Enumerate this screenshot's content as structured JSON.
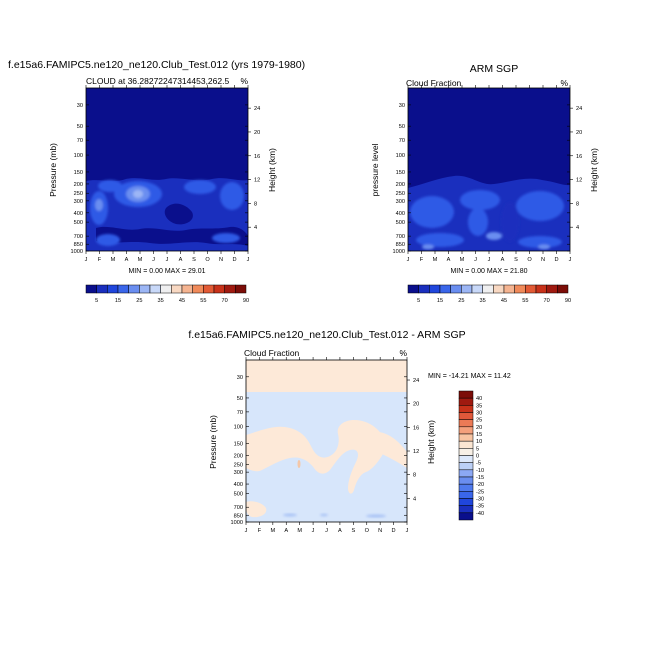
{
  "figure": {
    "panels": [
      {
        "id": "model",
        "title": "f.e15a6.FAMIPC5.ne120_ne120.Club_Test.012 (yrs 1979-1980)",
        "left_label": "CLOUD at 36.28272247314453,262.5",
        "right_label": "%",
        "ylabel": "Pressure (mb)",
        "ylabel_right": "Height (km)",
        "min_max": "MIN =   0.00 MAX =  29.01"
      },
      {
        "id": "obs",
        "title": "ARM SGP",
        "left_label": "Cloud Fraction",
        "right_label": "%",
        "ylabel": "pressure level",
        "ylabel_right": "Height (km)",
        "min_max": "MIN =   0.00 MAX =  21.80"
      },
      {
        "id": "diff",
        "title": "f.e15a6.FAMIPC5.ne120_ne120.Club_Test.012 - ARM SGP",
        "left_label": "Cloud Fraction",
        "right_label": "%",
        "ylabel": "Pressure (mb)",
        "ylabel_right": "Height (km)",
        "min_max": "MIN = -14.21 MAX =  11.42"
      }
    ]
  },
  "chart_data": [
    {
      "type": "heatmap",
      "panel": "model",
      "x_tick_labels": [
        "J",
        "F",
        "M",
        "A",
        "M",
        "J",
        "J",
        "A",
        "S",
        "O",
        "N",
        "D",
        "J"
      ],
      "pressure_ticks": [
        30,
        50,
        70,
        100,
        150,
        200,
        250,
        300,
        400,
        500,
        700,
        850,
        1000
      ],
      "height_ticks_km": [
        4,
        8,
        12,
        16,
        20,
        24
      ],
      "yscale": "log (pressure, reversed)",
      "ylim": [
        1000,
        20
      ],
      "colorbar": {
        "labels": [
          "5",
          "15",
          "25",
          "35",
          "45",
          "55",
          "70",
          "90"
        ],
        "levels": [
          5,
          10,
          15,
          20,
          25,
          30,
          35,
          40,
          45,
          50,
          55,
          60,
          70,
          80,
          90
        ],
        "colors": [
          "#0a0f8c",
          "#1a2fbe",
          "#2046dc",
          "#3a66ea",
          "#6a8ef0",
          "#9cb6f5",
          "#c8d8f8",
          "#efeff0",
          "#f8d8c2",
          "#f5b491",
          "#f08a5a",
          "#e25a35",
          "#c8321a",
          "#a01a10",
          "#7c0d08"
        ]
      },
      "contours": [
        {
          "level": "5-10",
          "color": "#1a2fbe",
          "region": "upper troposphere band ~170-260 mb and broad mid-lower layer"
        },
        {
          "level": "10-20",
          "color": "#2e5ae6",
          "region": "patches 250-450 mb in Feb, Apr-May, Oct-Nov"
        },
        {
          "level": "20-25",
          "color": "#6a8ef0",
          "region": "peak near 270 mb in late Apr-May"
        },
        {
          "level": "25-30",
          "color": "#9cb6f5",
          "region": "core ~290 mb in mid-May"
        }
      ],
      "min": 0.0,
      "max": 29.01
    },
    {
      "type": "heatmap",
      "panel": "obs",
      "x_tick_labels": [
        "J",
        "F",
        "M",
        "A",
        "M",
        "J",
        "J",
        "A",
        "S",
        "O",
        "N",
        "D",
        "J"
      ],
      "pressure_ticks": [
        30,
        50,
        70,
        100,
        150,
        200,
        250,
        300,
        400,
        500,
        700,
        850,
        1000
      ],
      "height_ticks_km": [
        4,
        8,
        12,
        16,
        20,
        24
      ],
      "yscale": "log (pressure, reversed)",
      "ylim": [
        1000,
        20
      ],
      "colorbar": {
        "labels": [
          "5",
          "15",
          "25",
          "35",
          "45",
          "55",
          "70",
          "90"
        ],
        "levels": [
          5,
          10,
          15,
          20,
          25,
          30,
          35,
          40,
          45,
          50,
          55,
          60,
          70,
          80,
          90
        ],
        "colors": [
          "#0a0f8c",
          "#1a2fbe",
          "#2046dc",
          "#3a66ea",
          "#6a8ef0",
          "#9cb6f5",
          "#c8d8f8",
          "#efeff0",
          "#f8d8c2",
          "#f5b491",
          "#f08a5a",
          "#e25a35",
          "#c8321a",
          "#a01a10",
          "#7c0d08"
        ]
      },
      "contours": [
        {
          "level": "5-10",
          "color": "#1a2fbe",
          "region": "broad band from ~200 mb to surface"
        },
        {
          "level": "10-15",
          "color": "#2e5ae6",
          "region": "patches 250-700 mb, strongest Feb-Mar and Jul-Aug"
        },
        {
          "level": "15-22",
          "color": "#6a8ef0",
          "region": "small patches near 650 mb and low levels"
        }
      ],
      "min": 0.0,
      "max": 21.8
    },
    {
      "type": "heatmap",
      "panel": "diff",
      "x_tick_labels": [
        "J",
        "F",
        "M",
        "A",
        "M",
        "J",
        "J",
        "A",
        "S",
        "O",
        "N",
        "D",
        "J"
      ],
      "pressure_ticks": [
        30,
        50,
        70,
        100,
        150,
        200,
        250,
        300,
        400,
        500,
        700,
        850,
        1000
      ],
      "height_ticks_km": [
        4,
        8,
        12,
        16,
        20,
        24
      ],
      "yscale": "log (pressure, reversed)",
      "ylim": [
        1000,
        20
      ],
      "colorbar": {
        "labels": [
          "-40",
          "-35",
          "-30",
          "-25",
          "-20",
          "-15",
          "-10",
          "-5",
          "0",
          "5",
          "10",
          "15",
          "20",
          "25",
          "30",
          "35",
          "40"
        ],
        "colors": [
          "#0a0f8c",
          "#1a2fbe",
          "#2046dc",
          "#3a66ea",
          "#4f7aee",
          "#6a8ef0",
          "#8ca8f4",
          "#bcd0f6",
          "#dde8fa",
          "#f8f0e6",
          "#fce6d2",
          "#f8c4a2",
          "#f4a07c",
          "#ec7a56",
          "#e0583a",
          "#c8321a",
          "#a01a10",
          "#7c0d08"
        ]
      },
      "contours": [
        {
          "level": "0-5",
          "color": "#fde9d8",
          "region": "stratosphere above ~55 mb and upper-troposphere tongue 100-300 mb"
        },
        {
          "level": "-5-0",
          "color": "#d7e6fb",
          "region": "most of the troposphere"
        },
        {
          "level": "-10--5",
          "color": "#a9c3f5",
          "region": "small patches near 800-850 mb"
        }
      ],
      "min": -14.21,
      "max": 11.42
    }
  ]
}
